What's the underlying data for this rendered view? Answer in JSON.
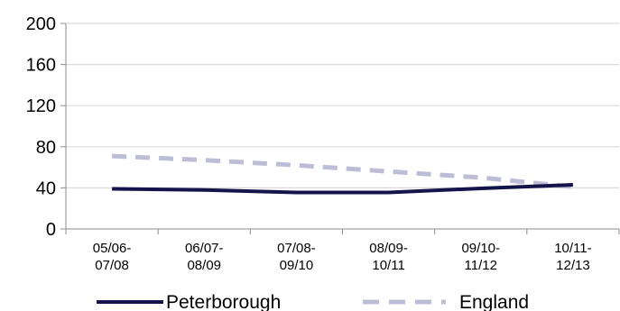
{
  "chart_data": {
    "type": "line",
    "categories": [
      [
        "05/06-",
        "07/08"
      ],
      [
        "06/07-",
        "08/09"
      ],
      [
        "07/08-",
        "09/10"
      ],
      [
        "08/09-",
        "10/11"
      ],
      [
        "09/10-",
        "11/12"
      ],
      [
        "10/11-",
        "12/13"
      ]
    ],
    "series": [
      {
        "name": "Peterborough",
        "values": [
          39,
          38,
          35.5,
          35.5,
          39.5,
          43
        ],
        "color": "#14144a",
        "style": "solid"
      },
      {
        "name": "England",
        "values": [
          71,
          67,
          62,
          56,
          50,
          41
        ],
        "color": "#bdbdd8",
        "style": "dashed"
      }
    ],
    "yticks": [
      0,
      40,
      80,
      120,
      160,
      200
    ],
    "ylim": [
      0,
      200
    ],
    "grid": true,
    "legend_position": "bottom"
  }
}
